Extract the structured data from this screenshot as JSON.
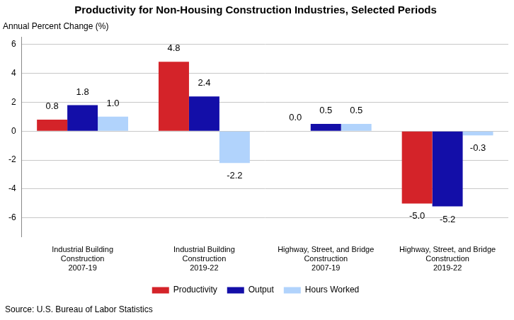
{
  "chart_data": {
    "type": "bar",
    "title": "Productivity for Non-Housing Construction Industries, Selected Periods",
    "y_label": "Annual Percent Change (%)",
    "source": "Source: U.S. Bureau of Labor Statistics",
    "categories": [
      [
        "Industrial Building",
        "Construction",
        "2007-19"
      ],
      [
        "Industrial Building",
        "Construction",
        "2019-22"
      ],
      [
        "Highway, Street, and Bridge",
        "Construction",
        "2007-19"
      ],
      [
        "Highway, Street, and Bridge",
        "Construction",
        "2019-22"
      ]
    ],
    "series": [
      {
        "name": "Productivity",
        "color": "#d42329",
        "values": [
          0.8,
          4.8,
          0.0,
          -5.0
        ],
        "value_labels": [
          "0.8",
          "4.8",
          "0.0",
          "-5.0"
        ]
      },
      {
        "name": "Output",
        "color": "#130ea8",
        "values": [
          1.8,
          2.4,
          0.5,
          -5.2
        ],
        "value_labels": [
          "1.8",
          "2.4",
          "0.5",
          "-5.2"
        ]
      },
      {
        "name": "Hours Worked",
        "color": "#b1d3fc",
        "values": [
          1.0,
          -2.2,
          0.5,
          -0.3
        ],
        "value_labels": [
          "1.0",
          "-2.2",
          "0.5",
          "-0.3"
        ]
      }
    ],
    "ylim": [
      -7.3,
      6.5
    ],
    "yticks": [
      -6,
      -4,
      -2,
      0,
      2,
      4,
      6
    ],
    "grid": true,
    "legend": "bottom",
    "data_labels": true
  }
}
